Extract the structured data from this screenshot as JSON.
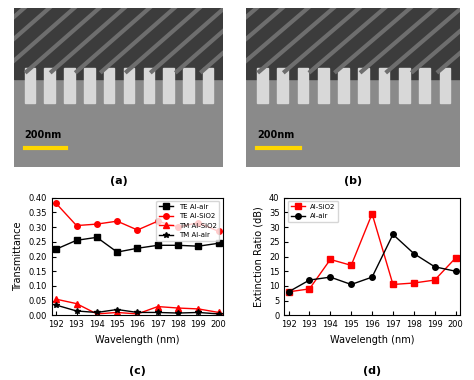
{
  "images": [
    {
      "annotation": "(a)",
      "scale_bar": "200nm"
    },
    {
      "annotation": "(b)",
      "scale_bar": "200nm"
    }
  ],
  "chart_data": [
    {
      "type": "line",
      "annotation": "(c)",
      "x_label": "Wavelength (nm)",
      "y_label": "Transmittance",
      "x": [
        192,
        193,
        194,
        195,
        196,
        197,
        198,
        199,
        200
      ],
      "series": [
        {
          "name": "TE Al-air",
          "color": "#000000",
          "marker": "s",
          "line_style": "solid",
          "values": [
            0.225,
            0.255,
            0.265,
            0.215,
            0.228,
            0.238,
            0.238,
            0.235,
            0.245
          ]
        },
        {
          "name": "TE Al-SiO2",
          "color": "#ff0000",
          "marker": "o",
          "line_style": "solid",
          "values": [
            0.38,
            0.305,
            0.31,
            0.32,
            0.29,
            0.32,
            0.3,
            0.315,
            0.285
          ]
        },
        {
          "name": "TM Al-SiO2",
          "color": "#ff0000",
          "marker": "^",
          "line_style": "solid",
          "values": [
            0.055,
            0.04,
            0.005,
            0.01,
            0.005,
            0.03,
            0.025,
            0.022,
            0.01
          ]
        },
        {
          "name": "TM Al-air",
          "color": "#000000",
          "marker": "*",
          "line_style": "solid",
          "values": [
            0.035,
            0.015,
            0.01,
            0.02,
            0.01,
            0.01,
            0.008,
            0.01,
            0.005
          ]
        }
      ],
      "xlim": [
        191.8,
        200.2
      ],
      "xticks": [
        192,
        193,
        194,
        195,
        196,
        197,
        198,
        199,
        200
      ],
      "ylim": [
        0,
        0.4
      ],
      "yticks": [
        {
          "value": 0,
          "label": "0.00"
        },
        {
          "value": 0.05,
          "label": "0.05"
        },
        {
          "value": 0.1,
          "label": "0.10"
        },
        {
          "value": 0.15,
          "label": "0.15"
        },
        {
          "value": 0.2,
          "label": "0.20"
        },
        {
          "value": 0.25,
          "label": "0.25"
        },
        {
          "value": 0.3,
          "label": "0.30"
        },
        {
          "value": 0.35,
          "label": "0.35"
        },
        {
          "value": 0.4,
          "label": "0.40"
        }
      ],
      "legend": "upper right",
      "grid": false
    },
    {
      "type": "line",
      "annotation": "(d)",
      "x_label": "Wavelength (nm)",
      "y_label": "Extinction Ratio (dB)",
      "x": [
        192,
        193,
        194,
        195,
        196,
        197,
        198,
        199,
        200
      ],
      "series": [
        {
          "name": "Al-SiO2",
          "color": "#ff0000",
          "marker": "s",
          "line_style": "solid",
          "values": [
            8,
            9,
            19,
            17,
            34.5,
            10.5,
            11,
            12,
            19.5
          ]
        },
        {
          "name": "Al-air",
          "color": "#000000",
          "marker": "o",
          "line_style": "solid",
          "values": [
            8,
            12,
            13,
            10.5,
            13,
            27.5,
            21,
            16.5,
            15
          ]
        }
      ],
      "xlim": [
        191.8,
        200.2
      ],
      "xticks": [
        192,
        193,
        194,
        195,
        196,
        197,
        198,
        199,
        200
      ],
      "ylim": [
        0,
        40
      ],
      "yticks": [
        0,
        5,
        10,
        15,
        20,
        25,
        30,
        35,
        40
      ],
      "legend": "upper left",
      "grid": false
    }
  ]
}
